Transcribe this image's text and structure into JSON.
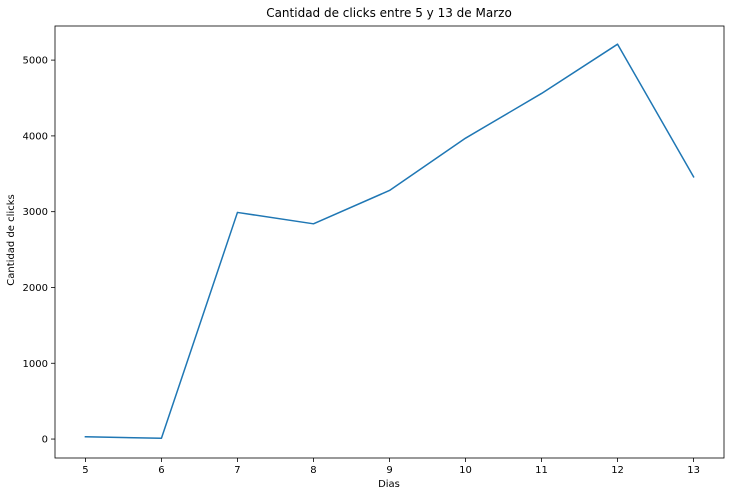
{
  "chart_data": {
    "type": "line",
    "title": "Cantidad de clicks entre 5 y 13 de Marzo",
    "xlabel": "Dias",
    "ylabel": "Cantidad de clicks",
    "x": [
      5,
      6,
      7,
      8,
      9,
      10,
      11,
      12,
      13
    ],
    "xticks": [
      "5",
      "6",
      "7",
      "8",
      "9",
      "10",
      "11",
      "12",
      "13"
    ],
    "xlim": [
      4.6,
      13.4
    ],
    "yticks": [
      0,
      1000,
      2000,
      3000,
      4000,
      5000
    ],
    "ytick_labels": [
      "0",
      "1000",
      "2000",
      "3000",
      "4000",
      "5000"
    ],
    "ylim": [
      -250,
      5450
    ],
    "grid": false,
    "legend": "none",
    "series": [
      {
        "values": [
          30,
          10,
          2990,
          2840,
          3280,
          3970,
          4560,
          5210,
          3460
        ],
        "color": "#1f77b4"
      }
    ]
  }
}
